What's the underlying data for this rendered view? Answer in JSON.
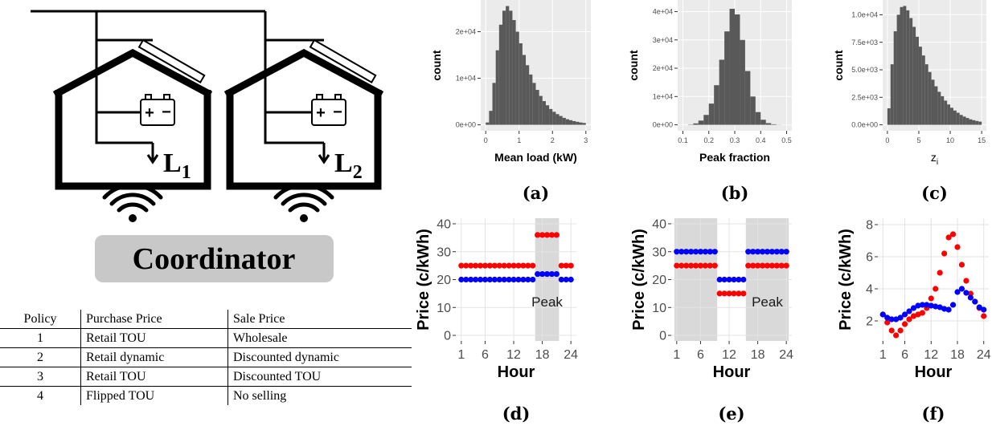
{
  "diagram": {
    "loads": [
      {
        "label": "L",
        "sub": "1"
      },
      {
        "label": "L",
        "sub": "2"
      }
    ],
    "battery": [
      "+",
      "−"
    ],
    "coordinator": "Coordinator"
  },
  "table": {
    "header": [
      "Policy",
      "Purchase Price",
      "Sale Price"
    ],
    "rows": [
      [
        "1",
        "Retail TOU",
        "Wholesale"
      ],
      [
        "2",
        "Retail dynamic",
        "Discounted dynamic"
      ],
      [
        "3",
        "Retail TOU",
        "Discounted TOU"
      ],
      [
        "4",
        "Flipped TOU",
        "No selling"
      ]
    ]
  },
  "chart_data": [
    {
      "type": "histogram",
      "caption": "(a)",
      "xlabel": "Mean load (kW)",
      "ylabel": "count",
      "color": "#595959",
      "grid": true,
      "bins": [
        0,
        0.1,
        0.2,
        0.3,
        0.4,
        0.5,
        0.6,
        0.7,
        0.8,
        0.9,
        1.0,
        1.1,
        1.2,
        1.3,
        1.4,
        1.5,
        1.6,
        1.7,
        1.8,
        1.9,
        2.0,
        2.1,
        2.2,
        2.3,
        2.4,
        2.5,
        2.6,
        2.7,
        2.8,
        2.9,
        3.0
      ],
      "values": [
        500,
        3000,
        9000,
        16000,
        21500,
        24500,
        25500,
        24500,
        22500,
        20000,
        17500,
        15000,
        12800,
        10800,
        9000,
        7500,
        6200,
        5100,
        4200,
        3400,
        2800,
        2300,
        1900,
        1500,
        1200,
        1000,
        800,
        650,
        500,
        400
      ],
      "xlim": [
        -0.15,
        3.15
      ],
      "xticks": [
        0,
        1,
        2,
        3
      ],
      "ylim": [
        -1275,
        26800
      ],
      "yticks": [
        {
          "value": 0,
          "label": "0e+00"
        },
        {
          "value": 10000,
          "label": "1e+04"
        },
        {
          "value": 20000,
          "label": "2e+04"
        }
      ]
    },
    {
      "type": "histogram",
      "caption": "(b)",
      "xlabel": "Peak fraction",
      "ylabel": "count",
      "color": "#595959",
      "grid": true,
      "bins": [
        0.1,
        0.12,
        0.14,
        0.16,
        0.18,
        0.2,
        0.22,
        0.24,
        0.26,
        0.28,
        0.3,
        0.32,
        0.34,
        0.36,
        0.38,
        0.4,
        0.42,
        0.44,
        0.46,
        0.48,
        0.5
      ],
      "values": [
        0,
        100,
        500,
        1500,
        3500,
        7500,
        14000,
        23000,
        33000,
        41000,
        39000,
        30000,
        19000,
        10000,
        4500,
        1800,
        600,
        200,
        50,
        10
      ],
      "xlim": [
        0.08,
        0.52
      ],
      "xticks": [
        0.1,
        0.2,
        0.3,
        0.4,
        0.5
      ],
      "ylim": [
        -2100,
        44100
      ],
      "yticks": [
        {
          "value": 0,
          "label": "0e+00"
        },
        {
          "value": 10000,
          "label": "1e+04"
        },
        {
          "value": 20000,
          "label": "2e+04"
        },
        {
          "value": 30000,
          "label": "3e+04"
        },
        {
          "value": 40000,
          "label": "4e+04"
        }
      ]
    },
    {
      "type": "histogram",
      "caption": "(c)",
      "xlabel": "z",
      "xlabel_sub": "i",
      "ylabel": "count",
      "color": "#595959",
      "grid": true,
      "bins": [
        0,
        0.5,
        1,
        1.5,
        2,
        2.5,
        3,
        3.5,
        4,
        4.5,
        5,
        5.5,
        6,
        6.5,
        7,
        7.5,
        8,
        8.5,
        9,
        9.5,
        10,
        10.5,
        11,
        11.5,
        12,
        12.5,
        13,
        13.5,
        14,
        14.5,
        15
      ],
      "values": [
        1500,
        5500,
        8500,
        10000,
        10700,
        10800,
        10400,
        9700,
        8900,
        8000,
        7100,
        6300,
        5500,
        4800,
        4100,
        3500,
        3000,
        2600,
        2200,
        1850,
        1550,
        1300,
        1100,
        900,
        750,
        620,
        500,
        420,
        350,
        290
      ],
      "xlim": [
        -0.75,
        15.75
      ],
      "xticks": [
        0,
        5,
        10,
        15
      ],
      "ylim": [
        -540,
        11340
      ],
      "yticks": [
        {
          "value": 0,
          "label": "0.0e+00"
        },
        {
          "value": 2500,
          "label": "2.5e+03"
        },
        {
          "value": 5000,
          "label": "5.0e+03"
        },
        {
          "value": 7500,
          "label": "7.5e+03"
        },
        {
          "value": 10000,
          "label": "1.0e+04"
        }
      ]
    },
    {
      "type": "scatter",
      "caption": "(d)",
      "xlabel": "Hour",
      "ylabel": "Price (c/kWh)",
      "annotation": "Peak",
      "grid": true,
      "shaded_regions": [
        [
          16.5,
          21.5
        ]
      ],
      "x": [
        1,
        2,
        3,
        4,
        5,
        6,
        7,
        8,
        9,
        10,
        11,
        12,
        13,
        14,
        15,
        16,
        17,
        18,
        19,
        20,
        21,
        22,
        23,
        24
      ],
      "series": [
        {
          "color": "#ff0000",
          "values": [
            25,
            25,
            25,
            25,
            25,
            25,
            25,
            25,
            25,
            25,
            25,
            25,
            25,
            25,
            25,
            25,
            36,
            36,
            36,
            36,
            36,
            25,
            25,
            25
          ]
        },
        {
          "color": "#0000ff",
          "values": [
            20,
            20,
            20,
            20,
            20,
            20,
            20,
            20,
            20,
            20,
            20,
            20,
            20,
            20,
            20,
            20,
            22,
            22,
            22,
            22,
            22,
            20,
            20,
            20
          ]
        }
      ],
      "xlim": [
        -0.15,
        25.15
      ],
      "xticks": [
        1,
        6,
        12,
        18,
        24
      ],
      "ylim": [
        -2,
        42
      ],
      "yticks": [
        0,
        10,
        20,
        30,
        40
      ]
    },
    {
      "type": "scatter",
      "caption": "(e)",
      "xlabel": "Hour",
      "ylabel": "Price (c/kWh)",
      "annotation": "Peak",
      "grid": true,
      "shaded_regions": [
        [
          0.5,
          9.5
        ],
        [
          15.5,
          24.5
        ]
      ],
      "x": [
        1,
        2,
        3,
        4,
        5,
        6,
        7,
        8,
        9,
        10,
        11,
        12,
        13,
        14,
        15,
        16,
        17,
        18,
        19,
        20,
        21,
        22,
        23,
        24
      ],
      "series": [
        {
          "color": "#ff0000",
          "values": [
            25,
            25,
            25,
            25,
            25,
            25,
            25,
            25,
            25,
            15,
            15,
            15,
            15,
            15,
            15,
            25,
            25,
            25,
            25,
            25,
            25,
            25,
            25,
            25
          ]
        },
        {
          "color": "#0000ff",
          "values": [
            30,
            30,
            30,
            30,
            30,
            30,
            30,
            30,
            30,
            20,
            20,
            20,
            20,
            20,
            20,
            30,
            30,
            30,
            30,
            30,
            30,
            30,
            30,
            30
          ]
        }
      ],
      "xlim": [
        -0.15,
        25.15
      ],
      "xticks": [
        1,
        6,
        12,
        18,
        24
      ],
      "ylim": [
        -2,
        42
      ],
      "yticks": [
        0,
        10,
        20,
        30,
        40
      ]
    },
    {
      "type": "scatter",
      "caption": "(f)",
      "xlabel": "Hour",
      "ylabel": "Price (c/kWh)",
      "grid": true,
      "x": [
        1,
        2,
        3,
        4,
        5,
        6,
        7,
        8,
        9,
        10,
        11,
        12,
        13,
        14,
        15,
        16,
        17,
        18,
        19,
        20,
        21,
        22,
        23,
        24
      ],
      "series": [
        {
          "color": "#ff0000",
          "values": [
            2.4,
            1.9,
            1.4,
            1.1,
            1.4,
            1.8,
            2.1,
            2.3,
            2.4,
            2.5,
            2.8,
            3.4,
            4.0,
            5.0,
            6.2,
            7.2,
            7.4,
            6.6,
            5.5,
            4.5,
            3.7,
            3.2,
            2.8,
            2.3
          ]
        },
        {
          "color": "#0000ff",
          "values": [
            2.4,
            2.2,
            2.1,
            2.1,
            2.2,
            2.4,
            2.6,
            2.8,
            2.95,
            3.0,
            3.0,
            2.95,
            2.9,
            2.85,
            2.75,
            2.7,
            3.0,
            3.8,
            4.0,
            3.75,
            3.45,
            3.2,
            2.85,
            2.7
          ]
        }
      ],
      "xlim": [
        -0.15,
        25.15
      ],
      "xticks": [
        1,
        6,
        12,
        18,
        24
      ],
      "ylim": [
        0.75,
        8.4
      ],
      "yticks": [
        2,
        4,
        6,
        8
      ]
    }
  ]
}
